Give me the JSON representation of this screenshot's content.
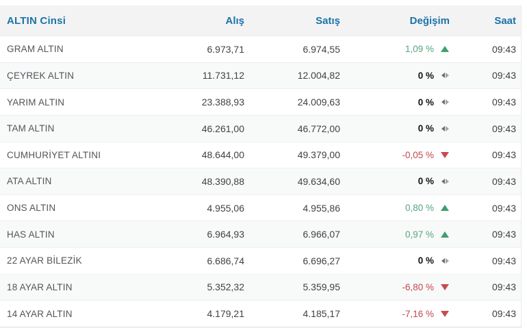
{
  "colors": {
    "header_text": "#1b74a6",
    "header_bg": "#f3f3f4",
    "row_alt_bg": "#f8f9f9",
    "up_green": "#54a67e",
    "down_red": "#c4474e",
    "zero_black": "#131316",
    "neutral_icon_gray": "#6d6d71"
  },
  "chart_data": {
    "type": "table",
    "columns": [
      "ALTIN Cinsi",
      "Alış",
      "Satış",
      "Değişim",
      "Saat"
    ],
    "rows": [
      {
        "name": "GRAM ALTIN",
        "alis": "6.973,71",
        "satis": "6.974,55",
        "degisim": "1,09 %",
        "direction": "up",
        "saat": "09:43"
      },
      {
        "name": "ÇEYREK ALTIN",
        "alis": "11.731,12",
        "satis": "12.004,82",
        "degisim": "0 %",
        "direction": "neutral",
        "saat": "09:43"
      },
      {
        "name": "YARIM ALTIN",
        "alis": "23.388,93",
        "satis": "24.009,63",
        "degisim": "0 %",
        "direction": "neutral",
        "saat": "09:43"
      },
      {
        "name": "TAM ALTIN",
        "alis": "46.261,00",
        "satis": "46.772,00",
        "degisim": "0 %",
        "direction": "neutral",
        "saat": "09:43"
      },
      {
        "name": "CUMHURİYET ALTINI",
        "alis": "48.644,00",
        "satis": "49.379,00",
        "degisim": "-0,05 %",
        "direction": "down",
        "saat": "09:43"
      },
      {
        "name": "ATA ALTIN",
        "alis": "48.390,88",
        "satis": "49.634,60",
        "degisim": "0 %",
        "direction": "neutral",
        "saat": "09:43"
      },
      {
        "name": "ONS ALTIN",
        "alis": "4.955,06",
        "satis": "4.955,86",
        "degisim": "0,80 %",
        "direction": "up",
        "saat": "09:43"
      },
      {
        "name": "HAS ALTIN",
        "alis": "6.964,93",
        "satis": "6.966,07",
        "degisim": "0,97 %",
        "direction": "up",
        "saat": "09:43"
      },
      {
        "name": "22 AYAR BİLEZİK",
        "alis": "6.686,74",
        "satis": "6.696,27",
        "degisim": "0 %",
        "direction": "neutral",
        "saat": "09:43"
      },
      {
        "name": "18 AYAR ALTIN",
        "alis": "5.352,32",
        "satis": "5.359,95",
        "degisim": "-6,80 %",
        "direction": "down",
        "saat": "09:43"
      },
      {
        "name": "14 AYAR ALTIN",
        "alis": "4.179,21",
        "satis": "4.185,17",
        "degisim": "-7,16 %",
        "direction": "down",
        "saat": "09:43"
      }
    ]
  }
}
